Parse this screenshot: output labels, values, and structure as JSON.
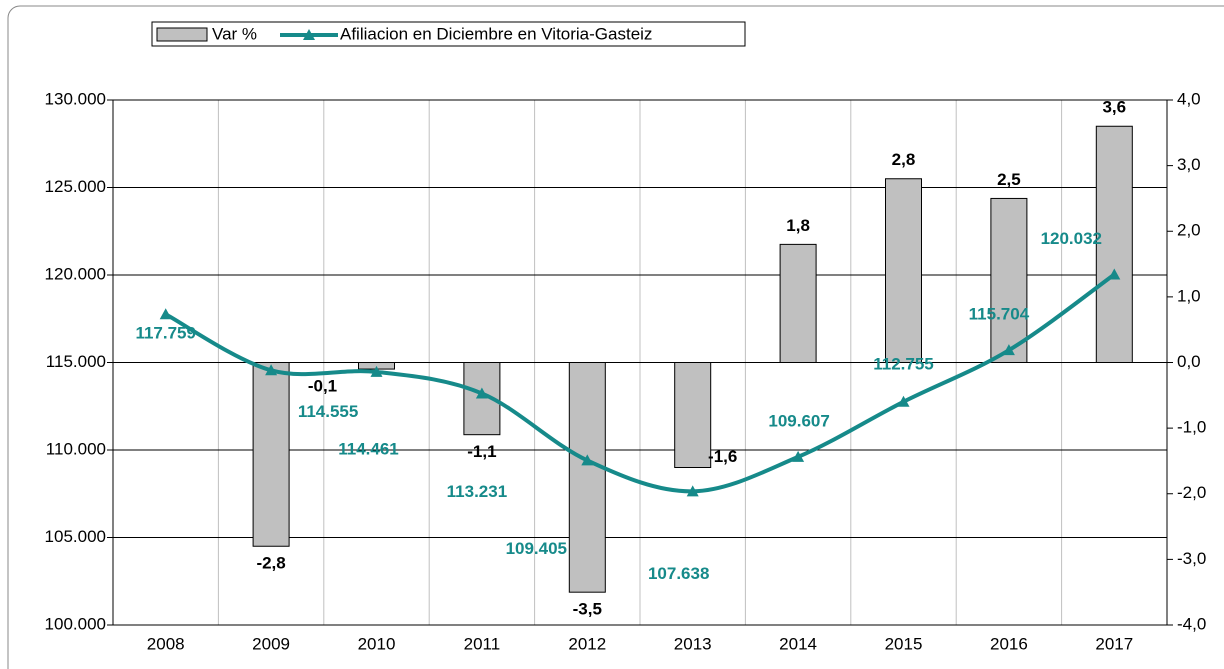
{
  "chart_data": {
    "type": "bar-line",
    "categories": [
      "2008",
      "2009",
      "2010",
      "2011",
      "2012",
      "2013",
      "2014",
      "2015",
      "2016",
      "2017"
    ],
    "series": [
      {
        "name": "Var %",
        "type": "bar",
        "axis": "y2",
        "color": "#c0c0c0",
        "values": [
          null,
          -2.8,
          -0.1,
          -1.1,
          -3.5,
          -1.6,
          1.8,
          2.8,
          2.5,
          3.6
        ],
        "value_labels": [
          null,
          "-2,8",
          "-0,1",
          "-1,1",
          "-3,5",
          "-1,6",
          "1,8",
          "2,8",
          "2,5",
          "3,6"
        ]
      },
      {
        "name": "Afiliacion en Diciembre en Vitoria-Gasteiz",
        "type": "line",
        "axis": "y",
        "color": "#168a8a",
        "values": [
          117759,
          114555,
          114461,
          113231,
          109405,
          107638,
          109607,
          112755,
          115704,
          120032
        ],
        "value_labels": [
          "117.759",
          "114.555",
          "114.461",
          "113.231",
          "109.405",
          "107.638",
          "109.607",
          "112.755",
          "115.704",
          "120.032"
        ]
      }
    ],
    "ylim": [
      100000,
      130000
    ],
    "yticks": [
      {
        "value": 100000,
        "label": "100.000"
      },
      {
        "value": 105000,
        "label": "105.000"
      },
      {
        "value": 110000,
        "label": "110.000"
      },
      {
        "value": 115000,
        "label": "115.000"
      },
      {
        "value": 120000,
        "label": "120.000"
      },
      {
        "value": 125000,
        "label": "125.000"
      },
      {
        "value": 130000,
        "label": "130.000"
      }
    ],
    "y2lim": [
      -4,
      4
    ],
    "y2ticks": [
      {
        "value": -4,
        "label": "-4,0"
      },
      {
        "value": -3,
        "label": "-3,0"
      },
      {
        "value": -2,
        "label": "-2,0"
      },
      {
        "value": -1,
        "label": "-1,0"
      },
      {
        "value": 0,
        "label": "0,0"
      },
      {
        "value": 1,
        "label": "1,0"
      },
      {
        "value": 2,
        "label": "2,0"
      },
      {
        "value": 3,
        "label": "3,0"
      },
      {
        "value": 4,
        "label": "4,0"
      }
    ],
    "grid": true,
    "legend": "top"
  }
}
